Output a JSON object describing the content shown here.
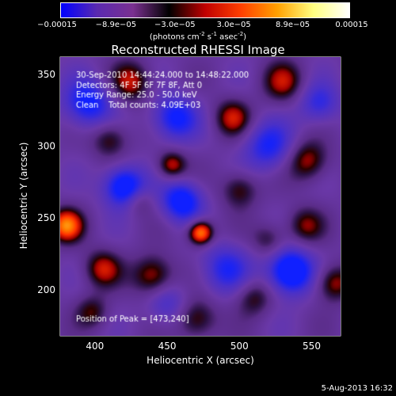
{
  "colorbar": {
    "ticks": [
      "−0.00015",
      "−8.9e−05",
      "−3.0e−05",
      "3.0e−05",
      "8.9e−05",
      "0.00015"
    ],
    "units_text": "(photons cm",
    "units_exp1": "-2",
    "units_mid": " s",
    "units_exp2": "-1",
    "units_end": " asec",
    "units_exp3": "-2",
    "units_close": ")"
  },
  "chart_data": {
    "type": "heatmap",
    "title": "Reconstructed RHESSI Image",
    "xlabel": "Heliocentric X (arcsec)",
    "ylabel": "Heliocentric Y (arcsec)",
    "xlim": [
      376,
      570
    ],
    "ylim": [
      168,
      362
    ],
    "xticks": [
      400,
      450,
      500,
      550
    ],
    "yticks": [
      200,
      250,
      300,
      350
    ],
    "color_range": [
      -0.00015,
      0.00015
    ],
    "colormap": [
      "#0000ff",
      "#5a2ab0",
      "#7a3090",
      "#000000",
      "#c00000",
      "#ff4000",
      "#ffa000",
      "#ffff80",
      "#ffffff"
    ],
    "annotations": [
      "30-Sep-2010 14:44:24.000 to 14:48:22.000",
      "Detectors: 4F 5F 6F 7F 8F, Att 0",
      "Energy Range: 25.0 - 50.0 keV",
      "Clean    Total counts: 4.09E+03"
    ],
    "peak_label": "Position of Peak = [473,240]",
    "peak": [
      473,
      240
    ],
    "blobs": [
      {
        "x": 473,
        "y": 240,
        "v": 1.0,
        "s": 6
      },
      {
        "x": 380,
        "y": 245,
        "v": 0.85,
        "s": 8
      },
      {
        "x": 453,
        "y": 287,
        "v": 0.6,
        "s": 7
      },
      {
        "x": 425,
        "y": 345,
        "v": 0.55,
        "s": 10
      },
      {
        "x": 495,
        "y": 320,
        "v": 0.55,
        "s": 9
      },
      {
        "x": 530,
        "y": 345,
        "v": 0.5,
        "s": 10
      },
      {
        "x": 547,
        "y": 290,
        "v": 0.55,
        "s": 10
      },
      {
        "x": 500,
        "y": 270,
        "v": 0.45,
        "s": 9
      },
      {
        "x": 410,
        "y": 305,
        "v": 0.45,
        "s": 9
      },
      {
        "x": 440,
        "y": 210,
        "v": 0.6,
        "s": 10
      },
      {
        "x": 405,
        "y": 215,
        "v": 0.55,
        "s": 9
      },
      {
        "x": 470,
        "y": 180,
        "v": 0.5,
        "s": 10
      },
      {
        "x": 510,
        "y": 195,
        "v": 0.4,
        "s": 9
      },
      {
        "x": 565,
        "y": 205,
        "v": 0.55,
        "s": 9
      },
      {
        "x": 545,
        "y": 245,
        "v": 0.45,
        "s": 9
      },
      {
        "x": 398,
        "y": 185,
        "v": 0.4,
        "s": 8
      },
      {
        "x": 520,
        "y": 235,
        "v": 0.35,
        "s": 8
      },
      {
        "x": 430,
        "y": 262,
        "v": 0.3,
        "s": 7
      },
      {
        "x": 420,
        "y": 272,
        "v": -0.9,
        "s": 10
      },
      {
        "x": 535,
        "y": 213,
        "v": -1.0,
        "s": 11
      },
      {
        "x": 460,
        "y": 262,
        "v": -0.8,
        "s": 10
      },
      {
        "x": 395,
        "y": 330,
        "v": -0.7,
        "s": 12
      },
      {
        "x": 455,
        "y": 320,
        "v": -0.7,
        "s": 11
      },
      {
        "x": 520,
        "y": 300,
        "v": -0.6,
        "s": 12
      },
      {
        "x": 490,
        "y": 215,
        "v": -0.55,
        "s": 12
      },
      {
        "x": 555,
        "y": 330,
        "v": -0.5,
        "s": 10
      },
      {
        "x": 450,
        "y": 190,
        "v": -0.4,
        "s": 10
      }
    ]
  },
  "footer": "5-Aug-2013 16:32"
}
